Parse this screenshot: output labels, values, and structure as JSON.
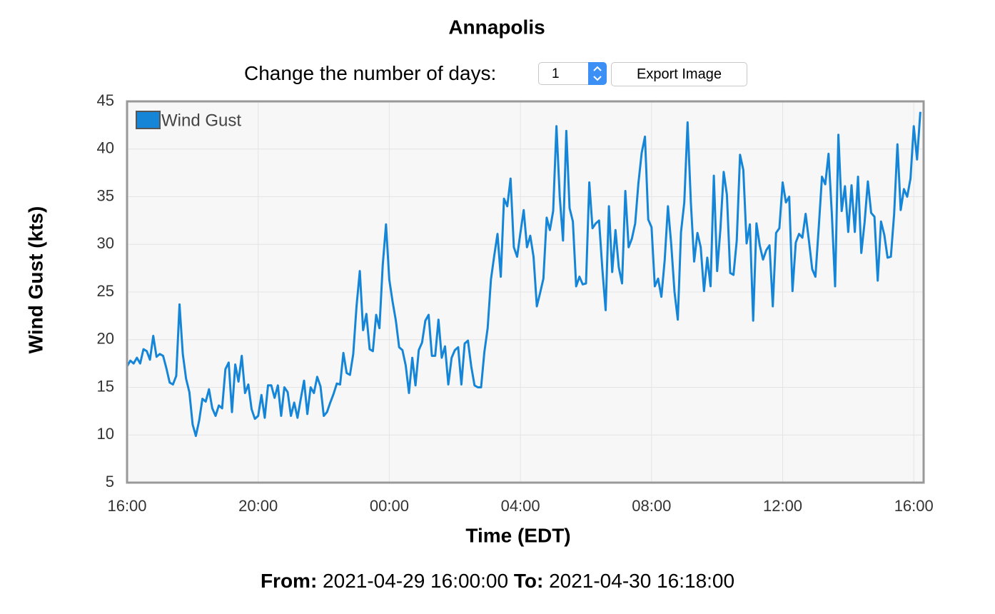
{
  "controls": {
    "label": "Change the number of days:",
    "days": 1,
    "button": "Export Image"
  },
  "footer": {
    "from_label": "From:",
    "to_label": "To:"
  },
  "chart_data": {
    "type": "line",
    "title": "Annapolis",
    "y_label": "Wind Gust (kts)",
    "x_label": "Time (EDT)",
    "x": [
      "16:00",
      "16:06",
      "16:12",
      "16:18",
      "16:24",
      "16:30",
      "16:36",
      "16:42",
      "16:48",
      "16:54",
      "17:00",
      "17:06",
      "17:12",
      "17:18",
      "17:24",
      "17:30",
      "17:36",
      "17:42",
      "17:48",
      "17:54",
      "18:00",
      "18:06",
      "18:12",
      "18:18",
      "18:24",
      "18:30",
      "18:36",
      "18:42",
      "18:48",
      "18:54",
      "19:00",
      "19:06",
      "19:12",
      "19:18",
      "19:24",
      "19:30",
      "19:36",
      "19:42",
      "19:48",
      "19:54",
      "20:00",
      "20:06",
      "20:12",
      "20:18",
      "20:24",
      "20:30",
      "20:36",
      "20:42",
      "20:48",
      "20:54",
      "21:00",
      "21:06",
      "21:12",
      "21:18",
      "21:24",
      "21:30",
      "21:36",
      "21:42",
      "21:48",
      "21:54",
      "22:00",
      "22:06",
      "22:12",
      "22:18",
      "22:24",
      "22:30",
      "22:36",
      "22:42",
      "22:48",
      "22:54",
      "23:00",
      "23:06",
      "23:12",
      "23:18",
      "23:24",
      "23:30",
      "23:36",
      "23:42",
      "23:48",
      "23:54",
      "00:00",
      "00:06",
      "00:12",
      "00:18",
      "00:24",
      "00:30",
      "00:36",
      "00:42",
      "00:48",
      "00:54",
      "01:00",
      "01:06",
      "01:12",
      "01:18",
      "01:24",
      "01:30",
      "01:36",
      "01:42",
      "01:48",
      "01:54",
      "02:00",
      "02:06",
      "02:12",
      "02:18",
      "02:24",
      "02:30",
      "02:36",
      "02:42",
      "02:48",
      "02:54",
      "03:00",
      "03:06",
      "03:12",
      "03:18",
      "03:24",
      "03:30",
      "03:36",
      "03:42",
      "03:48",
      "03:54",
      "04:00",
      "04:06",
      "04:12",
      "04:18",
      "04:24",
      "04:30",
      "04:36",
      "04:42",
      "04:48",
      "04:54",
      "05:00",
      "05:06",
      "05:12",
      "05:18",
      "05:24",
      "05:30",
      "05:36",
      "05:42",
      "05:48",
      "05:54",
      "06:00",
      "06:06",
      "06:12",
      "06:18",
      "06:24",
      "06:30",
      "06:36",
      "06:42",
      "06:48",
      "06:54",
      "07:00",
      "07:06",
      "07:12",
      "07:18",
      "07:24",
      "07:30",
      "07:36",
      "07:42",
      "07:48",
      "07:54",
      "08:00",
      "08:06",
      "08:12",
      "08:18",
      "08:24",
      "08:30",
      "08:36",
      "08:42",
      "08:48",
      "08:54",
      "09:00",
      "09:06",
      "09:12",
      "09:18",
      "09:24",
      "09:30",
      "09:36",
      "09:42",
      "09:48",
      "09:54",
      "10:00",
      "10:06",
      "10:12",
      "10:18",
      "10:24",
      "10:30",
      "10:36",
      "10:42",
      "10:48",
      "10:54",
      "11:00",
      "11:06",
      "11:12",
      "11:18",
      "11:24",
      "11:30",
      "11:36",
      "11:42",
      "11:48",
      "11:54",
      "12:00",
      "12:06",
      "12:12",
      "12:18",
      "12:24",
      "12:30",
      "12:36",
      "12:42",
      "12:48",
      "12:54",
      "13:00",
      "13:06",
      "13:12",
      "13:18",
      "13:24",
      "13:30",
      "13:36",
      "13:42",
      "13:48",
      "13:54",
      "14:00",
      "14:06",
      "14:12",
      "14:18",
      "14:24",
      "14:30",
      "14:36",
      "14:42",
      "14:48",
      "14:54",
      "15:00",
      "15:06",
      "15:12",
      "15:18",
      "15:24",
      "15:30",
      "15:36",
      "15:42",
      "15:48",
      "15:54",
      "16:00",
      "16:06",
      "16:12"
    ],
    "series": [
      {
        "name": "Wind Gust",
        "color": "#1585d8",
        "values": [
          17.2,
          17.8,
          17.5,
          18.1,
          17.5,
          19,
          18.8,
          17.9,
          20.4,
          18.2,
          18.5,
          18.3,
          17,
          15.5,
          15.3,
          16.2,
          23.7,
          18.5,
          15.9,
          14.5,
          11.1,
          9.9,
          11.5,
          13.8,
          13.5,
          14.8,
          12.8,
          12,
          13.1,
          12.8,
          16.9,
          17.6,
          12.4,
          17.4,
          15.6,
          18.3,
          14.4,
          15.3,
          12.7,
          11.7,
          12,
          14.2,
          11.8,
          15.2,
          15.2,
          13.9,
          15.2,
          12,
          15,
          14.5,
          12,
          13.4,
          11.8,
          13.8,
          15.7,
          12.2,
          15,
          14.4,
          16.1,
          15.1,
          12,
          12.4,
          13.4,
          14.3,
          15.4,
          15.3,
          18.6,
          16.5,
          16.3,
          18.5,
          23.5,
          27.2,
          21,
          22.7,
          19,
          18.8,
          22.6,
          21.2,
          27.8,
          32.1,
          26.3,
          24,
          22,
          19.2,
          18.9,
          17.3,
          14.4,
          18.1,
          15.2,
          18.9,
          19.7,
          22,
          22.6,
          18.3,
          18.3,
          22.1,
          18.1,
          19.3,
          15.3,
          18.1,
          18.9,
          19.2,
          15.3,
          19.6,
          19.9,
          17.2,
          15.2,
          15,
          15,
          18.7,
          21.2,
          26.3,
          28.8,
          31.1,
          26.6,
          34.8,
          34,
          36.9,
          29.7,
          28.7,
          31.2,
          33.6,
          29.7,
          30.9,
          28.7,
          23.5,
          24.9,
          26.4,
          32.8,
          31.5,
          33.5,
          42.4,
          35,
          30.4,
          41.9,
          33.8,
          32.4,
          25.6,
          26.6,
          25.8,
          25.9,
          36.5,
          31.7,
          32.2,
          32.5,
          27.4,
          23.1,
          34,
          27.1,
          31.5,
          27.6,
          25.9,
          35.6,
          29.7,
          30.6,
          32.2,
          36.4,
          39.6,
          41.3,
          32.6,
          31.8,
          25.6,
          26.4,
          24.5,
          28.3,
          34,
          30,
          25,
          22.1,
          31.3,
          34.4,
          42.8,
          34.4,
          28.2,
          31.2,
          29.7,
          25.1,
          28.6,
          25.6,
          37.2,
          27.2,
          31.6,
          37.6,
          35.2,
          27,
          26.8,
          30.4,
          39.4,
          37.8,
          30.1,
          32.1,
          22,
          32.2,
          29.9,
          28.4,
          29.4,
          29.9,
          23.5,
          31.2,
          31.7,
          36.5,
          34.4,
          35,
          25.1,
          30.2,
          31.1,
          30.7,
          33.2,
          30.4,
          27.4,
          26.6,
          31.7,
          37.1,
          36.3,
          39.5,
          33.2,
          25.6,
          41.5,
          33.5,
          36.1,
          31.3,
          36.2,
          31.3,
          37.1,
          29.1,
          32.3,
          36.6,
          33.3,
          32.9,
          26.2,
          32.4,
          31,
          28.6,
          28.7,
          33.2,
          40.5,
          33.6,
          35.8,
          35,
          36.9,
          42.4,
          38.9,
          43.9
        ]
      }
    ],
    "xlim": [
      "2021-04-29 16:00:00",
      "2021-04-30 16:18:00"
    ],
    "xticks": [
      "16:00",
      "20:00",
      "00:00",
      "04:00",
      "08:00",
      "12:00",
      "16:00"
    ],
    "ylim": [
      5,
      45
    ],
    "yticks": [
      5,
      10,
      15,
      20,
      25,
      30,
      35,
      40,
      45
    ],
    "grid": true,
    "legend": "upper left"
  }
}
